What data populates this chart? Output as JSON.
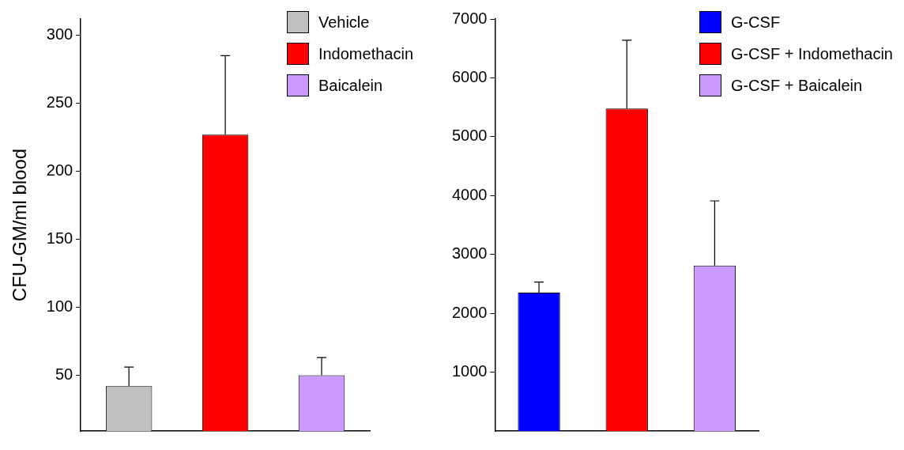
{
  "chart_data": [
    {
      "type": "bar",
      "ylabel": "CFU-GM/ml blood",
      "categories": [
        null,
        null,
        null
      ],
      "series": [
        {
          "name": "Vehicle",
          "color": "#c0c0c0",
          "values": [
            42,
            null,
            null
          ],
          "errors": [
            [
              42,
              56
            ],
            null,
            null
          ]
        },
        {
          "name": "Indomethacin",
          "color": "#ff0000",
          "values": [
            null,
            227,
            null
          ],
          "errors": [
            null,
            [
              227,
              285
            ],
            null
          ]
        },
        {
          "name": "Baicalein",
          "color": "#cc99ff",
          "values": [
            null,
            null,
            50
          ],
          "errors": [
            null,
            null,
            [
              50,
              63
            ]
          ]
        }
      ],
      "ylim": [
        9,
        312
      ],
      "yticks": [
        50,
        100,
        150,
        200,
        250,
        300
      ],
      "legend": "top right",
      "tick_labels": "y"
    },
    {
      "type": "bar",
      "categories": [
        null,
        null,
        null
      ],
      "series": [
        {
          "name": "G-CSF",
          "color": "#0000ff",
          "values": [
            2350,
            null,
            null
          ],
          "errors": [
            [
              2350,
              2530
            ],
            null,
            null
          ]
        },
        {
          "name": "G-CSF + Indomethacin",
          "color": "#ff0000",
          "values": [
            null,
            5480,
            null
          ],
          "errors": [
            null,
            [
              5480,
              6640
            ],
            null
          ]
        },
        {
          "name": "G-CSF + Baicalein",
          "color": "#cc99ff",
          "values": [
            null,
            null,
            2810
          ],
          "errors": [
            null,
            null,
            [
              2810,
              3910
            ]
          ]
        }
      ],
      "ylim": [
        0,
        7000
      ],
      "yticks": [
        1000,
        2000,
        3000,
        4000,
        5000,
        6000,
        7000
      ],
      "legend": "top right",
      "tick_labels": "y"
    }
  ]
}
